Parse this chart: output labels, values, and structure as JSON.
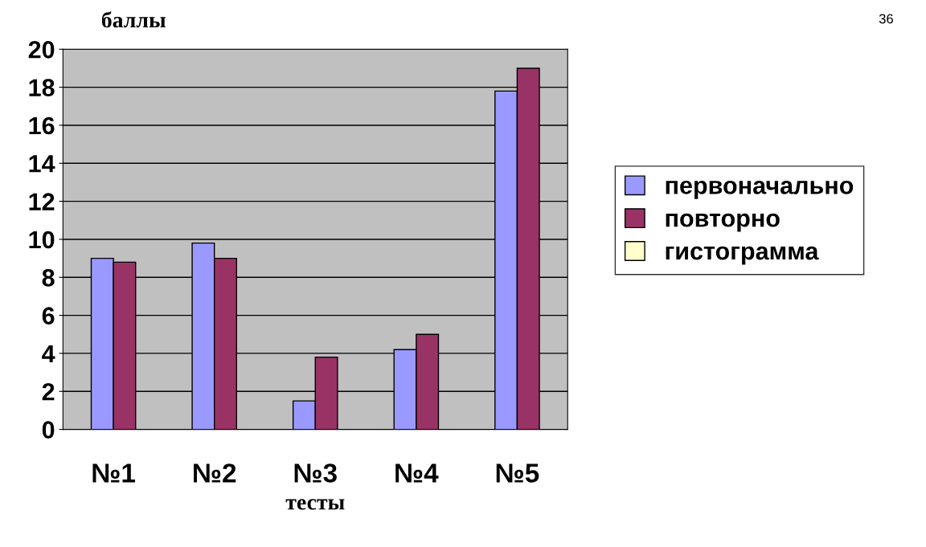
{
  "chart_data": {
    "type": "bar",
    "ylabel": "баллы",
    "xlabel": "тесты",
    "categories": [
      "№1",
      "№2",
      "№3",
      "№4",
      "№5"
    ],
    "series": [
      {
        "name": "первоначально",
        "color": "#9999ff",
        "values": [
          9.0,
          9.8,
          1.5,
          4.2,
          17.8
        ]
      },
      {
        "name": "повторно",
        "color": "#993366",
        "values": [
          8.8,
          9.0,
          3.8,
          5.0,
          19.0
        ]
      },
      {
        "name": "гистограмма",
        "color": "#ffffcc",
        "values": [
          null,
          null,
          null,
          null,
          null
        ]
      }
    ],
    "ylim": [
      0,
      20
    ],
    "yticks": [
      0,
      2,
      4,
      6,
      8,
      10,
      12,
      14,
      16,
      18,
      20
    ],
    "grid": "y",
    "legend": "right",
    "annotations": [
      "36"
    ]
  }
}
